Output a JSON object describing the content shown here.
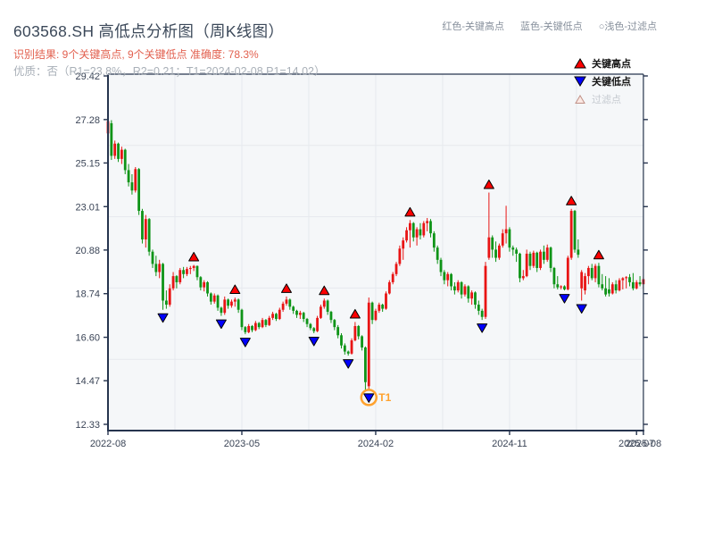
{
  "header": {
    "title": "603568.SH 高低点分析图（周K线图）",
    "result_line": "识别结果: 9个关键高点, 9个关键低点  准确度: 78.3%",
    "quality_line": "优质：否（R1=23.8%，R2=0.21；T1=2024-02-08 P1=14.02）",
    "top_legend": {
      "high_label": "红色-关键高点",
      "low_label": "蓝色-关键低点",
      "filter_label": "○浅色-过滤点"
    }
  },
  "legend": {
    "items": [
      {
        "label": "关键高点",
        "marker": "triangle-up-red"
      },
      {
        "label": "关键低点",
        "marker": "triangle-down-blue"
      },
      {
        "label": "过滤点",
        "marker": "triangle-up-pale"
      }
    ]
  },
  "chart_data": {
    "type": "candlestick",
    "symbol": "603568.SH",
    "freq": "weekly",
    "weeks_total": 156,
    "y_ticks": [
      12.33,
      14.47,
      16.6,
      18.74,
      20.88,
      23.01,
      25.15,
      27.28,
      29.42
    ],
    "y_tick_labels": [
      "12.33",
      "14.47",
      "16.60",
      "18.74",
      "20.88",
      "23.01",
      "25.15",
      "27.28",
      "29.42"
    ],
    "x_ticks": [
      {
        "week": 0,
        "label": "2022-08"
      },
      {
        "week": 39,
        "label": "2023-05"
      },
      {
        "week": 78,
        "label": "2024-02"
      },
      {
        "week": 117,
        "label": "2024-11"
      },
      {
        "week": 154,
        "label": "2025-07"
      },
      {
        "week": 156,
        "label": "2025-08"
      }
    ],
    "grid_divisions": {
      "vertical": 8,
      "horizontal": 5
    },
    "candles": [
      [
        26.6,
        27.35,
        26.4,
        27.2
      ],
      [
        27.1,
        27.25,
        25.3,
        25.5
      ],
      [
        25.5,
        26.25,
        25.35,
        26.1
      ],
      [
        26.1,
        26.15,
        25.2,
        25.35
      ],
      [
        25.35,
        25.95,
        25.1,
        25.8
      ],
      [
        25.8,
        25.85,
        24.6,
        24.8
      ],
      [
        24.8,
        25.1,
        24.0,
        24.2
      ],
      [
        24.2,
        24.6,
        23.6,
        23.8
      ],
      [
        23.8,
        24.95,
        23.7,
        24.85
      ],
      [
        24.85,
        24.9,
        22.6,
        22.8
      ],
      [
        22.8,
        22.9,
        21.2,
        21.4
      ],
      [
        21.4,
        22.6,
        21.0,
        22.4
      ],
      [
        22.4,
        22.45,
        20.6,
        20.8
      ],
      [
        20.8,
        20.9,
        20.0,
        20.2
      ],
      [
        20.2,
        20.6,
        19.6,
        19.8
      ],
      [
        19.8,
        20.4,
        19.5,
        20.2
      ],
      [
        20.2,
        20.25,
        17.95,
        18.4
      ],
      [
        18.4,
        18.9,
        18.0,
        18.2
      ],
      [
        18.2,
        19.2,
        18.1,
        19.0
      ],
      [
        19.0,
        19.8,
        18.9,
        19.6
      ],
      [
        19.6,
        19.65,
        19.0,
        19.3
      ],
      [
        19.3,
        20.0,
        19.2,
        19.9
      ],
      [
        19.9,
        20.05,
        19.5,
        19.7
      ],
      [
        19.7,
        20.05,
        19.6,
        19.95
      ],
      [
        19.95,
        20.1,
        19.7,
        20.0
      ],
      [
        20.0,
        20.15,
        19.85,
        20.1
      ],
      [
        20.1,
        20.12,
        19.4,
        19.55
      ],
      [
        19.55,
        19.6,
        18.9,
        19.05
      ],
      [
        19.05,
        19.4,
        18.85,
        19.3
      ],
      [
        19.3,
        19.35,
        18.6,
        18.75
      ],
      [
        18.75,
        18.8,
        18.2,
        18.35
      ],
      [
        18.35,
        18.75,
        18.25,
        18.65
      ],
      [
        18.65,
        18.7,
        17.9,
        18.05
      ],
      [
        18.05,
        18.1,
        17.65,
        17.8
      ],
      [
        17.8,
        18.6,
        17.7,
        18.45
      ],
      [
        18.45,
        18.5,
        18.0,
        18.15
      ],
      [
        18.15,
        18.45,
        18.05,
        18.35
      ],
      [
        18.35,
        18.55,
        18.1,
        18.45
      ],
      [
        18.45,
        18.5,
        17.8,
        17.95
      ],
      [
        17.95,
        18.0,
        16.95,
        17.1
      ],
      [
        17.1,
        17.15,
        16.75,
        16.85
      ],
      [
        16.85,
        17.25,
        16.8,
        17.15
      ],
      [
        17.15,
        17.2,
        16.85,
        16.95
      ],
      [
        16.95,
        17.4,
        16.9,
        17.3
      ],
      [
        17.3,
        17.35,
        17.0,
        17.1
      ],
      [
        17.1,
        17.55,
        17.05,
        17.45
      ],
      [
        17.45,
        17.5,
        17.1,
        17.2
      ],
      [
        17.2,
        17.65,
        17.15,
        17.55
      ],
      [
        17.55,
        17.85,
        17.45,
        17.75
      ],
      [
        17.75,
        17.8,
        17.4,
        17.5
      ],
      [
        17.5,
        18.05,
        17.45,
        17.95
      ],
      [
        17.95,
        18.35,
        17.85,
        18.25
      ],
      [
        18.25,
        18.6,
        18.15,
        18.45
      ],
      [
        18.45,
        18.5,
        17.95,
        18.1
      ],
      [
        18.1,
        18.15,
        17.75,
        17.9
      ],
      [
        17.9,
        17.95,
        17.55,
        17.7
      ],
      [
        17.7,
        17.9,
        17.5,
        17.8
      ],
      [
        17.8,
        17.85,
        17.35,
        17.5
      ],
      [
        17.5,
        17.55,
        17.1,
        17.25
      ],
      [
        17.25,
        17.3,
        16.95,
        17.05
      ],
      [
        17.05,
        17.1,
        16.8,
        16.9
      ],
      [
        16.9,
        17.65,
        16.85,
        17.55
      ],
      [
        17.55,
        18.2,
        17.5,
        18.1
      ],
      [
        18.1,
        18.5,
        18.0,
        18.4
      ],
      [
        18.4,
        18.45,
        17.7,
        17.85
      ],
      [
        17.85,
        17.9,
        17.3,
        17.45
      ],
      [
        17.45,
        17.5,
        16.95,
        17.1
      ],
      [
        17.1,
        17.2,
        16.55,
        16.7
      ],
      [
        16.7,
        16.8,
        16.05,
        16.2
      ],
      [
        16.2,
        16.3,
        15.75,
        15.9
      ],
      [
        15.9,
        15.95,
        15.7,
        15.8
      ],
      [
        15.8,
        16.55,
        15.75,
        16.45
      ],
      [
        16.45,
        17.35,
        16.4,
        17.15
      ],
      [
        17.15,
        17.2,
        16.5,
        16.65
      ],
      [
        16.65,
        16.7,
        15.95,
        16.1
      ],
      [
        16.1,
        16.15,
        14.0,
        14.4
      ],
      [
        14.2,
        18.55,
        14.02,
        18.3
      ],
      [
        18.3,
        18.35,
        17.25,
        17.45
      ],
      [
        17.45,
        18.0,
        17.4,
        17.9
      ],
      [
        17.9,
        18.3,
        17.8,
        18.2
      ],
      [
        18.2,
        18.25,
        17.85,
        18.0
      ],
      [
        18.0,
        18.85,
        17.95,
        18.75
      ],
      [
        18.75,
        19.4,
        18.7,
        19.3
      ],
      [
        19.3,
        19.8,
        19.2,
        19.7
      ],
      [
        19.7,
        20.3,
        19.6,
        20.2
      ],
      [
        20.2,
        21.1,
        20.1,
        20.95
      ],
      [
        20.95,
        21.5,
        20.4,
        21.35
      ],
      [
        21.35,
        22.0,
        21.25,
        21.85
      ],
      [
        21.85,
        22.35,
        21.0,
        22.2
      ],
      [
        22.2,
        22.25,
        21.3,
        21.5
      ],
      [
        21.5,
        22.0,
        21.1,
        21.9
      ],
      [
        21.9,
        22.2,
        21.4,
        21.6
      ],
      [
        21.6,
        22.3,
        21.5,
        22.2
      ],
      [
        22.2,
        22.45,
        21.8,
        22.3
      ],
      [
        22.3,
        22.4,
        21.5,
        21.7
      ],
      [
        21.7,
        21.8,
        20.8,
        21.0
      ],
      [
        21.0,
        21.1,
        20.2,
        20.4
      ],
      [
        20.4,
        20.5,
        19.6,
        19.8
      ],
      [
        19.8,
        19.9,
        19.2,
        19.4
      ],
      [
        19.4,
        19.8,
        19.1,
        19.7
      ],
      [
        19.7,
        19.75,
        18.9,
        19.1
      ],
      [
        19.1,
        19.3,
        18.7,
        18.9
      ],
      [
        18.9,
        19.4,
        18.8,
        19.3
      ],
      [
        19.3,
        19.35,
        18.5,
        18.7
      ],
      [
        18.7,
        19.2,
        18.6,
        19.1
      ],
      [
        19.1,
        19.15,
        18.3,
        18.5
      ],
      [
        18.5,
        18.9,
        18.2,
        18.8
      ],
      [
        18.8,
        18.85,
        18.0,
        18.2
      ],
      [
        18.2,
        18.4,
        17.7,
        17.9
      ],
      [
        17.9,
        18.0,
        17.45,
        17.6
      ],
      [
        17.6,
        20.3,
        17.5,
        20.1
      ],
      [
        20.5,
        23.7,
        20.4,
        21.5
      ],
      [
        21.5,
        21.6,
        20.5,
        20.9
      ],
      [
        20.9,
        21.3,
        20.3,
        20.5
      ],
      [
        20.5,
        21.2,
        20.4,
        21.1
      ],
      [
        21.1,
        21.9,
        21.0,
        21.7
      ],
      [
        21.7,
        23.05,
        21.2,
        21.9
      ],
      [
        21.9,
        22.0,
        20.8,
        21.0
      ],
      [
        21.0,
        21.1,
        20.6,
        20.9
      ],
      [
        20.9,
        21.0,
        20.3,
        20.7
      ],
      [
        20.7,
        20.75,
        19.3,
        19.5
      ],
      [
        19.5,
        19.9,
        19.4,
        19.6
      ],
      [
        19.6,
        20.9,
        19.55,
        20.7
      ],
      [
        20.7,
        20.8,
        19.9,
        20.1
      ],
      [
        20.1,
        20.85,
        20.0,
        20.75
      ],
      [
        20.75,
        20.8,
        19.8,
        20.0
      ],
      [
        20.0,
        20.9,
        19.9,
        20.8
      ],
      [
        20.8,
        21.1,
        20.2,
        20.4
      ],
      [
        20.4,
        21.15,
        20.3,
        21.0
      ],
      [
        21.0,
        21.05,
        19.8,
        20.0
      ],
      [
        20.0,
        20.05,
        19.0,
        19.2
      ],
      [
        19.2,
        19.6,
        18.95,
        19.05
      ],
      [
        19.05,
        19.15,
        18.95,
        19.1
      ],
      [
        19.1,
        19.15,
        18.9,
        18.95
      ],
      [
        18.95,
        20.6,
        18.9,
        20.5
      ],
      [
        20.5,
        22.9,
        20.4,
        22.8
      ],
      [
        22.8,
        22.85,
        20.75,
        20.9
      ],
      [
        20.9,
        21.4,
        20.5,
        20.65
      ],
      [
        19.0,
        19.9,
        18.4,
        19.8
      ],
      [
        18.9,
        19.75,
        18.7,
        19.6
      ],
      [
        19.6,
        20.1,
        19.2,
        20.0
      ],
      [
        20.0,
        20.2,
        19.4,
        19.5
      ],
      [
        19.5,
        20.2,
        19.3,
        20.1
      ],
      [
        20.1,
        20.25,
        19.05,
        19.2
      ],
      [
        19.2,
        19.7,
        18.9,
        19.0
      ],
      [
        19.0,
        19.6,
        18.6,
        18.7
      ],
      [
        18.95,
        19.5,
        18.6,
        18.75
      ],
      [
        18.75,
        19.3,
        18.7,
        19.2
      ],
      [
        19.2,
        19.4,
        18.75,
        18.9
      ],
      [
        18.9,
        19.5,
        18.85,
        19.4
      ],
      [
        19.4,
        19.55,
        18.95,
        19.5
      ],
      [
        19.5,
        19.6,
        19.0,
        19.55
      ],
      [
        19.55,
        19.7,
        19.1,
        19.3
      ],
      [
        19.3,
        19.75,
        18.9,
        19.0
      ],
      [
        19.0,
        19.4,
        18.95,
        19.3
      ],
      [
        19.3,
        19.6,
        19.1,
        19.2
      ],
      [
        19.2,
        19.55,
        19.0,
        19.45
      ]
    ],
    "key_highs": [
      {
        "week": 25,
        "price": 20.15
      },
      {
        "week": 37,
        "price": 18.55
      },
      {
        "week": 52,
        "price": 18.6
      },
      {
        "week": 63,
        "price": 18.5
      },
      {
        "week": 72,
        "price": 17.35
      },
      {
        "week": 88,
        "price": 22.35
      },
      {
        "week": 111,
        "price": 23.7
      },
      {
        "week": 135,
        "price": 22.9
      },
      {
        "week": 143,
        "price": 20.25
      }
    ],
    "key_lows": [
      {
        "week": 16,
        "price": 17.95
      },
      {
        "week": 33,
        "price": 17.65
      },
      {
        "week": 40,
        "price": 16.75
      },
      {
        "week": 60,
        "price": 16.8
      },
      {
        "week": 70,
        "price": 15.7
      },
      {
        "week": 76,
        "price": 14.02
      },
      {
        "week": 109,
        "price": 17.45
      },
      {
        "week": 133,
        "price": 18.9
      },
      {
        "week": 138,
        "price": 18.4
      }
    ],
    "filtered_points": [],
    "annotation": {
      "label": "T1",
      "week": 76,
      "price": 14.02,
      "date": "2024-02-08"
    },
    "colors": {
      "up_candle": "#e81414",
      "down_candle": "#0e9417",
      "key_high": "#ff0000",
      "key_low": "#0000ff",
      "filtered_fill": "#fbe9e4",
      "filtered_edge": "#c09086",
      "marker_edge": "#000000",
      "annotation": "#ffa22e",
      "plot_bg": "#f5f7f9",
      "grid": "#e6e9ee",
      "spine": "#26344e",
      "tick_label": "#3a4456"
    }
  }
}
